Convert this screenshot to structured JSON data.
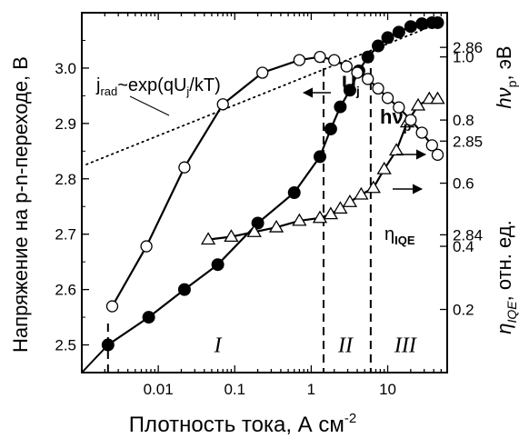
{
  "chart_data": {
    "type": "line",
    "xlabel": "Плотность тока, А см",
    "xlabel_sup": "-2",
    "ylabel_left": "Напряжение на p-n-переходе, В",
    "ylabel_right_top": {
      "text": "hν",
      "sub": "p",
      "suffix": ", эВ"
    },
    "ylabel_right_bottom": {
      "text": "η",
      "sub": "IQE",
      "suffix": ", отн. ед."
    },
    "x_scale": "log",
    "xlim": [
      0.001,
      60
    ],
    "ylim_left": [
      2.45,
      3.1
    ],
    "ylim_hv": [
      2.8253,
      2.8637
    ],
    "ylim_eta": [
      0.0,
      1.14
    ],
    "grid": false,
    "x_ticks": [
      {
        "value": 0.01,
        "label": "0.01"
      },
      {
        "value": 0.1,
        "label": "0.1"
      },
      {
        "value": 1,
        "label": "1"
      },
      {
        "value": 10,
        "label": "10"
      }
    ],
    "y_left_ticks": [
      {
        "value": 2.5,
        "label": "2.5"
      },
      {
        "value": 2.6,
        "label": "2.6"
      },
      {
        "value": 2.7,
        "label": "2.7"
      },
      {
        "value": 2.8,
        "label": "2.8"
      },
      {
        "value": 2.9,
        "label": "2.9"
      },
      {
        "value": 3.0,
        "label": "3.0"
      }
    ],
    "y_hv_ticks": [
      {
        "value": 2.84,
        "label": "2.84"
      },
      {
        "value": 2.85,
        "label": "2.85"
      },
      {
        "value": 2.86,
        "label": "2.86"
      }
    ],
    "y_eta_ticks": [
      {
        "value": 0.2,
        "label": "0.2"
      },
      {
        "value": 0.4,
        "label": "0.4"
      },
      {
        "value": 0.6,
        "label": "0.6"
      },
      {
        "value": 0.8,
        "label": "0.8"
      },
      {
        "value": 1.0,
        "label": "1.0"
      }
    ],
    "series": [
      {
        "name": "U",
        "name_sub": "j",
        "axis": "left",
        "marker": "filled-circle",
        "x": [
          0.0022,
          0.0075,
          0.022,
          0.06,
          0.2,
          0.6,
          1.3,
          1.8,
          2.4,
          3.2,
          4.2,
          5.5,
          7.5,
          10,
          14,
          20,
          28,
          38,
          45
        ],
        "y": [
          2.5,
          2.55,
          2.6,
          2.645,
          2.72,
          2.775,
          2.84,
          2.89,
          2.93,
          2.96,
          2.995,
          3.02,
          3.04,
          3.055,
          3.065,
          3.075,
          3.08,
          3.082,
          3.082
        ]
      },
      {
        "name": "hν",
        "name_sub": "p",
        "axis": "hv",
        "marker": "open-triangle",
        "x": [
          0.045,
          0.09,
          0.18,
          0.35,
          0.7,
          1.3,
          1.8,
          2.4,
          3.2,
          4.5,
          6.5,
          9,
          13,
          18,
          25,
          35,
          45
        ],
        "y": [
          2.8395,
          2.8398,
          2.8403,
          2.8408,
          2.8415,
          2.8418,
          2.8422,
          2.8428,
          2.8435,
          2.8443,
          2.845,
          2.847,
          2.849,
          2.852,
          2.8538,
          2.8545,
          2.8545
        ]
      },
      {
        "name": "η",
        "name_sub": "IQE",
        "axis": "eta",
        "marker": "open-circle",
        "x": [
          0.0025,
          0.007,
          0.022,
          0.07,
          0.23,
          0.7,
          1.3,
          2.0,
          2.9,
          4.0,
          5.5,
          7.5,
          10,
          14,
          20,
          28,
          38,
          45
        ],
        "y": [
          0.21,
          0.4,
          0.65,
          0.85,
          0.95,
          0.99,
          1.0,
          0.99,
          0.97,
          0.95,
          0.93,
          0.9,
          0.87,
          0.84,
          0.8,
          0.76,
          0.72,
          0.69
        ]
      },
      {
        "name": "j_rad ~ exp(qU_j/kT)",
        "axis": "left",
        "style": "dotted",
        "x": [
          0.001,
          0.001
        ],
        "y": [
          2.826,
          2.826
        ],
        "x_end": 45,
        "y_end": 3.08
      }
    ],
    "fit_line": {
      "x0": 0.00115,
      "y0": 2.826,
      "x1": 45,
      "y1": 3.08
    },
    "extrapolation_line": {
      "x0": 0.001,
      "y0": 2.45,
      "x1": 0.0022,
      "y1": 2.5
    },
    "region_boundaries": [
      1.45,
      6.0
    ],
    "region_markers": [
      0.0022
    ],
    "regions": [
      {
        "label": "I",
        "x": 0.06,
        "y": 2.5
      },
      {
        "label": "II",
        "x": 2.8,
        "y": 2.5
      },
      {
        "label": "III",
        "x": 17,
        "y": 2.5
      }
    ],
    "annotations": {
      "fit_label": {
        "text": "j",
        "sub1": "rad",
        "mid": "~exp(qU",
        "sub2": "j",
        "end": "/kT)"
      },
      "uj_label": {
        "text": "U",
        "sub": "j"
      },
      "hv_label": {
        "text": "hν",
        "sub": "p"
      },
      "eta_label": {
        "text": "η",
        "sub": "IQE"
      }
    }
  }
}
